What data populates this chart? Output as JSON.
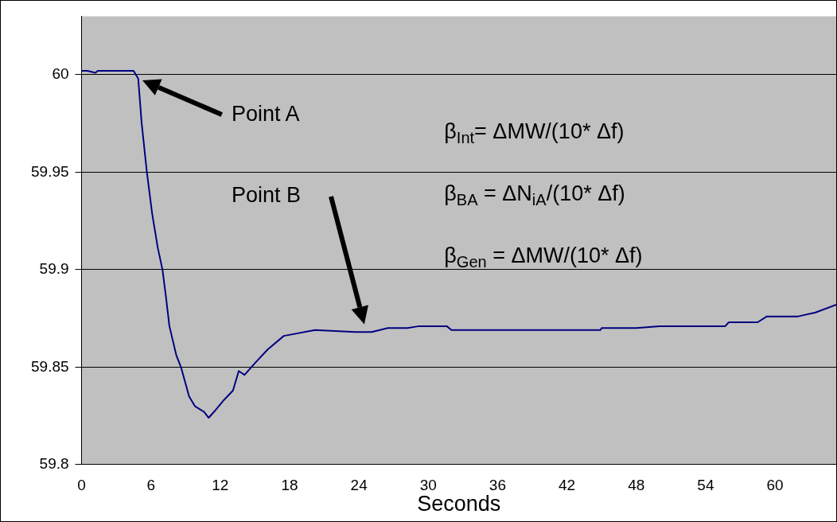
{
  "chart_data": {
    "type": "line",
    "xlabel": "Seconds",
    "x": [
      0,
      0.5,
      1.2,
      1.4,
      1.8,
      4.5,
      4.9,
      5.2,
      5.65,
      6.1,
      6.6,
      7.0,
      7.3,
      7.6,
      8.2,
      8.6,
      9.3,
      9.8,
      10.6,
      11.0,
      11.6,
      12.3,
      13.1,
      13.6,
      14.1,
      15.0,
      16.1,
      17.5,
      20.2,
      23.7,
      25.1,
      26.5,
      28.2,
      29.2,
      31.6,
      32,
      36,
      37.6,
      44.9,
      45,
      48,
      50,
      55.7,
      56,
      58.5,
      59.3,
      62,
      63.5,
      65.3
    ],
    "series": [
      {
        "color": "#000080",
        "values": [
          60.002,
          60.002,
          60.001,
          60.002,
          60.002,
          60.002,
          59.998,
          59.975,
          59.95,
          59.929,
          59.911,
          59.9,
          59.886,
          59.871,
          59.856,
          59.85,
          59.835,
          59.83,
          59.827,
          59.824,
          59.828,
          59.833,
          59.838,
          59.848,
          59.846,
          59.852,
          59.859,
          59.866,
          59.869,
          59.868,
          59.868,
          59.87,
          59.87,
          59.871,
          59.871,
          59.869,
          59.869,
          59.869,
          59.869,
          59.87,
          59.87,
          59.871,
          59.871,
          59.873,
          59.873,
          59.876,
          59.876,
          59.878,
          59.882
        ]
      }
    ],
    "xlim": [
      0,
      65.3
    ],
    "xticks": [
      0,
      6,
      12,
      18,
      24,
      30,
      36,
      42,
      48,
      54,
      60
    ],
    "ylim": [
      59.8,
      60.03
    ],
    "yticks": [
      59.8,
      59.85,
      59.9,
      59.95,
      60
    ],
    "grid": "y",
    "legend": false,
    "marker": "none",
    "line_style": "solid",
    "annotations": [
      "Point A",
      "Point B",
      "β$_{Int}$= ΔMW/(10* Δf)",
      "β$_{BA}$ = ΔN$_{iA}$/(10* Δf)",
      "β$_{Gen}$ = ΔMW/(10* Δf)"
    ]
  }
}
